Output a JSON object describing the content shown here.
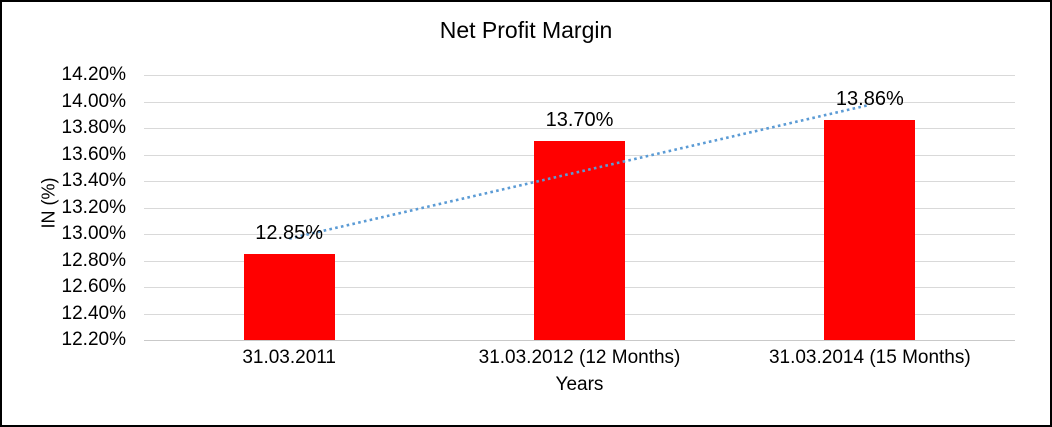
{
  "chart_data": {
    "type": "bar",
    "title": "Net Profit Margin",
    "xlabel": "Years",
    "ylabel": "IN (%)",
    "categories": [
      "31.03.2011",
      "31.03.2012 (12 Months)",
      "31.03.2014 (15 Months)"
    ],
    "values": [
      12.85,
      13.7,
      13.86
    ],
    "data_labels": [
      "12.85%",
      "13.70%",
      "13.86%"
    ],
    "ylim": [
      12.2,
      14.2
    ],
    "ytick_step": 0.2,
    "yticks": [
      "14.20%",
      "14.00%",
      "13.80%",
      "13.60%",
      "13.40%",
      "13.20%",
      "13.00%",
      "12.80%",
      "12.60%",
      "12.40%",
      "12.20%"
    ],
    "grid": true,
    "legend": "none",
    "colors": {
      "bar": "#ff0000",
      "trendline": "#5b9bd5",
      "gridline": "#d9d9d9",
      "text": "#000000",
      "background": "#ffffff",
      "frame_border": "#000000"
    },
    "trendline": {
      "type": "linear",
      "style": "dotted",
      "fit_to": "values"
    }
  }
}
